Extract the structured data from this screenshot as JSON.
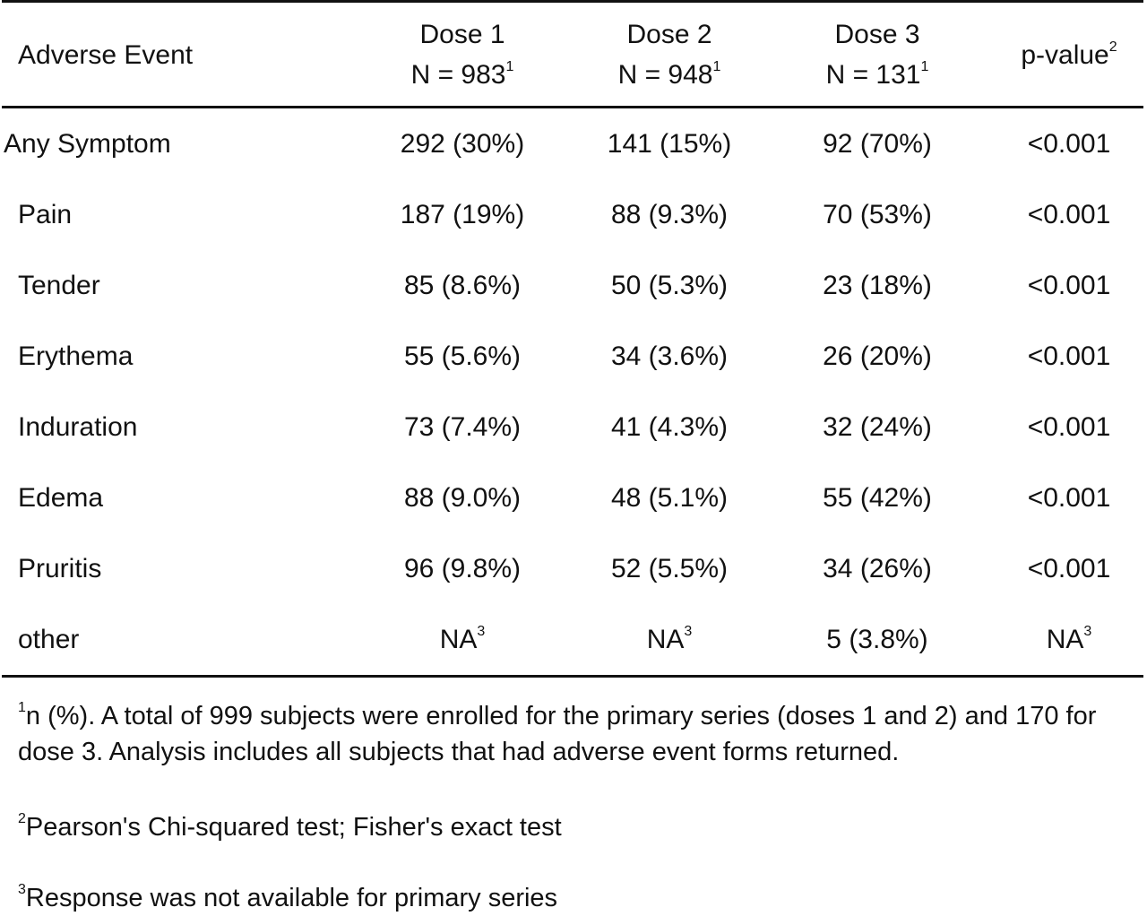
{
  "table": {
    "header": {
      "label": "Adverse Event",
      "columns": [
        {
          "line1": "Dose 1",
          "line2": "N = 983",
          "sup": "1"
        },
        {
          "line1": "Dose 2",
          "line2": "N = 948",
          "sup": "1"
        },
        {
          "line1": "Dose 3",
          "line2": "N = 131",
          "sup": "1"
        }
      ],
      "pvalue_label": "p-value",
      "pvalue_sup": "2"
    },
    "rows": [
      {
        "label": "Any Symptom",
        "d1": "292 (30%)",
        "d2": "141 (15%)",
        "d3": "92 (70%)",
        "p": "<0.001"
      },
      {
        "label": "Pain",
        "d1": "187 (19%)",
        "d2": "88 (9.3%)",
        "d3": "70 (53%)",
        "p": "<0.001"
      },
      {
        "label": "Tender",
        "d1": "85 (8.6%)",
        "d2": "50 (5.3%)",
        "d3": "23 (18%)",
        "p": "<0.001"
      },
      {
        "label": "Erythema",
        "d1": "55 (5.6%)",
        "d2": "34 (3.6%)",
        "d3": "26 (20%)",
        "p": "<0.001"
      },
      {
        "label": "Induration",
        "d1": "73 (7.4%)",
        "d2": "41 (4.3%)",
        "d3": "32 (24%)",
        "p": "<0.001"
      },
      {
        "label": "Edema",
        "d1": "88 (9.0%)",
        "d2": "48 (5.1%)",
        "d3": "55 (42%)",
        "p": "<0.001"
      },
      {
        "label": "Pruritis",
        "d1": "96 (9.8%)",
        "d2": "52 (5.5%)",
        "d3": "34 (26%)",
        "p": "<0.001"
      },
      {
        "label": "other",
        "d1": "NA",
        "d1_sup": "3",
        "d2": "NA",
        "d2_sup": "3",
        "d3": "5 (3.8%)",
        "p": "NA",
        "p_sup": "3"
      }
    ]
  },
  "footnotes": [
    {
      "sup": "1",
      "text": "n (%). A total of 999 subjects were enrolled for the primary series (doses 1 and 2) and 170 for dose 3.  Analysis includes all subjects that had adverse event forms returned."
    },
    {
      "sup": "2",
      "text": "Pearson's Chi-squared test; Fisher's exact test"
    },
    {
      "sup": "3",
      "text": "Response was not available for primary series"
    }
  ]
}
